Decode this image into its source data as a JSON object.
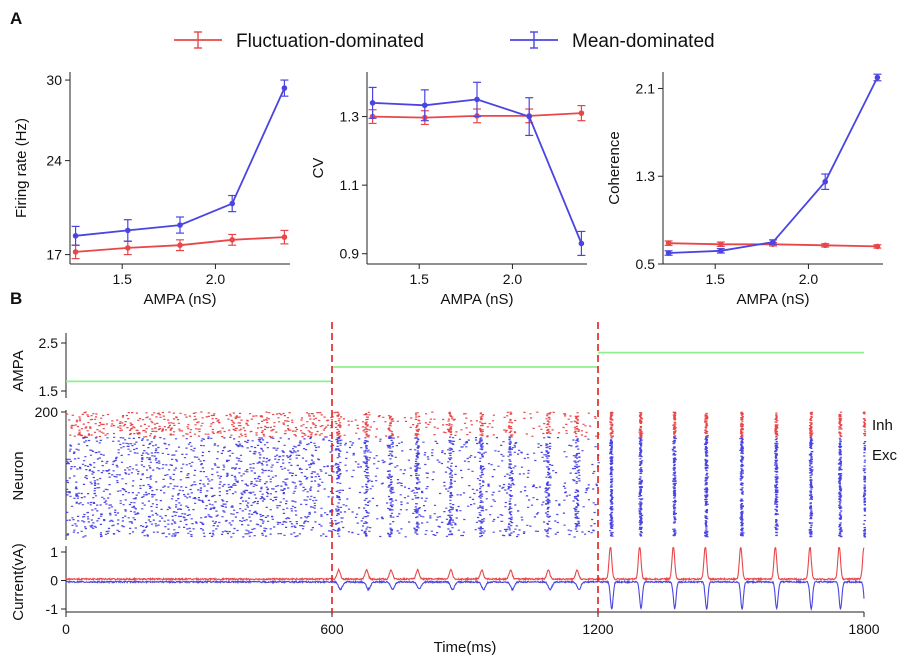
{
  "panel_labels": {
    "a": "A",
    "b": "B"
  },
  "legend": {
    "items": [
      {
        "label": "Fluctuation-dominated",
        "color": "#e8474a"
      },
      {
        "label": "Mean-dominated",
        "color": "#4a45e2"
      }
    ]
  },
  "colors": {
    "fluct": "#e8474a",
    "mean": "#4a45e2",
    "ampa_line": "#8ff08f",
    "divider": "#e02020"
  },
  "chart_data": [
    {
      "id": "firing-rate",
      "type": "line",
      "xlabel": "AMPA (nS)",
      "ylabel": "Firing rate (Hz)",
      "xlim": [
        1.22,
        2.4
      ],
      "ylim": [
        16.3,
        30.6
      ],
      "xticks": [
        1.5,
        2.0
      ],
      "xtick_labels": [
        "1.5",
        "2.0"
      ],
      "yticks": [
        17,
        24,
        30
      ],
      "ytick_labels": [
        "17",
        "24",
        "30"
      ],
      "x": [
        1.25,
        1.53,
        1.81,
        2.09,
        2.37
      ],
      "series": [
        {
          "name": "Fluctuation-dominated",
          "color": "#e8474a",
          "values": [
            17.2,
            17.5,
            17.7,
            18.1,
            18.3
          ],
          "errors": [
            0.5,
            0.5,
            0.4,
            0.4,
            0.5
          ]
        },
        {
          "name": "Mean-dominated",
          "color": "#4a45e2",
          "values": [
            18.4,
            18.8,
            19.2,
            20.8,
            29.4
          ],
          "errors": [
            0.7,
            0.8,
            0.6,
            0.6,
            0.6
          ]
        }
      ]
    },
    {
      "id": "cv",
      "type": "line",
      "xlabel": "AMPA (nS)",
      "ylabel": "CV",
      "xlim": [
        1.22,
        2.4
      ],
      "ylim": [
        0.87,
        1.43
      ],
      "xticks": [
        1.5,
        2.0
      ],
      "xtick_labels": [
        "1.5",
        "2.0"
      ],
      "yticks": [
        0.9,
        1.1,
        1.3
      ],
      "ytick_labels": [
        "0.9",
        "1.1",
        "1.3"
      ],
      "x": [
        1.25,
        1.53,
        1.81,
        2.09,
        2.37
      ],
      "series": [
        {
          "name": "Fluctuation-dominated",
          "color": "#e8474a",
          "values": [
            1.3,
            1.297,
            1.302,
            1.302,
            1.31
          ],
          "errors": [
            0.02,
            0.02,
            0.02,
            0.02,
            0.022
          ]
        },
        {
          "name": "Mean-dominated",
          "color": "#4a45e2",
          "values": [
            1.34,
            1.333,
            1.35,
            1.3,
            0.93
          ],
          "errors": [
            0.045,
            0.045,
            0.05,
            0.055,
            0.035
          ]
        }
      ]
    },
    {
      "id": "coherence",
      "type": "line",
      "xlabel": "AMPA (nS)",
      "ylabel": "Coherence",
      "xlim": [
        1.22,
        2.4
      ],
      "ylim": [
        0.5,
        2.25
      ],
      "xticks": [
        1.5,
        2.0
      ],
      "xtick_labels": [
        "1.5",
        "2.0"
      ],
      "yticks": [
        0.5,
        1.3,
        2.1
      ],
      "ytick_labels": [
        "0.5",
        "1.3",
        "2.1"
      ],
      "x": [
        1.25,
        1.53,
        1.81,
        2.09,
        2.37
      ],
      "series": [
        {
          "name": "Fluctuation-dominated",
          "color": "#e8474a",
          "values": [
            0.69,
            0.68,
            0.68,
            0.67,
            0.66
          ],
          "errors": [
            0.02,
            0.02,
            0.015,
            0.015,
            0.015
          ]
        },
        {
          "name": "Mean-dominated",
          "color": "#4a45e2",
          "values": [
            0.6,
            0.62,
            0.7,
            1.25,
            2.2
          ],
          "errors": [
            0.02,
            0.02,
            0.02,
            0.07,
            0.03
          ]
        }
      ]
    },
    {
      "id": "ampa-trace",
      "type": "line",
      "ylabel": "AMPA",
      "xlim": [
        0,
        1800
      ],
      "ylim": [
        1.5,
        2.5
      ],
      "yticks": [
        1.5,
        2.5
      ],
      "ytick_labels": [
        "1.5",
        "2.5"
      ],
      "segments": [
        {
          "x": [
            0,
            600
          ],
          "value": 1.7
        },
        {
          "x": [
            600,
            1200
          ],
          "value": 2.0
        },
        {
          "x": [
            1200,
            1800
          ],
          "value": 2.3
        }
      ]
    },
    {
      "id": "raster",
      "type": "scatter",
      "ylabel": "Neuron",
      "xlim": [
        0,
        1800
      ],
      "ylim": [
        0,
        200
      ],
      "yticks": [
        200
      ],
      "ytick_labels": [
        "200"
      ],
      "groups": [
        {
          "name": "Inh",
          "neuron_range": [
            160,
            200
          ],
          "color": "#e8474a"
        },
        {
          "name": "Exc",
          "neuron_range": [
            0,
            160
          ],
          "color": "#4a45e2"
        }
      ],
      "regimes": [
        {
          "t": [
            0,
            600
          ],
          "state": "asynchronous"
        },
        {
          "t": [
            600,
            1200
          ],
          "state": "weak oscillation",
          "burst_times": [
            612,
            675,
            730,
            790,
            865,
            935,
            1000,
            1085,
            1150
          ]
        },
        {
          "t": [
            1200,
            1800
          ],
          "state": "strong oscillation",
          "burst_times": [
            1228,
            1294,
            1370,
            1442,
            1522,
            1600,
            1678,
            1744,
            1800
          ]
        }
      ]
    },
    {
      "id": "current",
      "type": "line",
      "xlabel": "Time(ms)",
      "ylabel": "Current(vA)",
      "xlim": [
        0,
        1800
      ],
      "ylim": [
        -1,
        1
      ],
      "yticks": [
        -1,
        0,
        1
      ],
      "ytick_labels": [
        "-1",
        "0",
        "1"
      ],
      "xticks": [
        0,
        600,
        1200,
        1800
      ],
      "xtick_labels": [
        "0",
        "600",
        "1200",
        "1800"
      ],
      "divider_times": [
        600,
        1200
      ],
      "series": [
        {
          "name": "Inh",
          "color": "#e8474a"
        },
        {
          "name": "Exc",
          "color": "#4a45e2"
        }
      ]
    }
  ]
}
